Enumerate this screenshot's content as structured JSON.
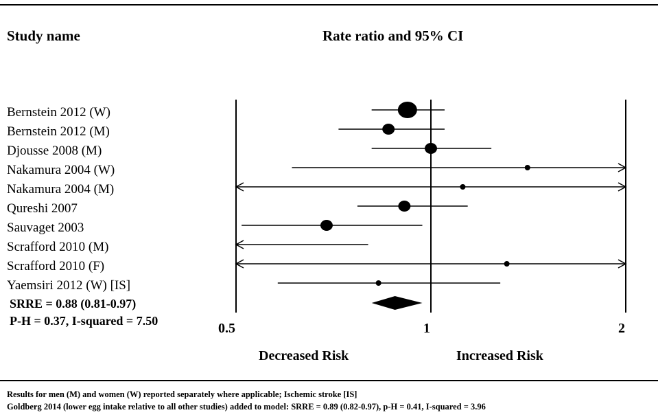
{
  "header": {
    "study_col": "Study name",
    "effect_col": "Rate ratio and 95% CI"
  },
  "chart_data": {
    "type": "forest",
    "x_scale": "log",
    "xlim": [
      0.5,
      2
    ],
    "xticks": [
      "0.5",
      "1",
      "2"
    ],
    "reference_line": 1,
    "direction_labels": {
      "left": "Decreased Risk",
      "right": "Increased Risk"
    },
    "studies": [
      {
        "name": "Bernstein 2012 (W)",
        "estimate": 0.92,
        "lower": 0.81,
        "upper": 1.05,
        "weight": "large"
      },
      {
        "name": "Bernstein 2012 (M)",
        "estimate": 0.86,
        "lower": 0.72,
        "upper": 1.05,
        "weight": "medium"
      },
      {
        "name": "Djousse 2008 (M)",
        "estimate": 1.0,
        "lower": 0.81,
        "upper": 1.24,
        "weight": "medium"
      },
      {
        "name": "Nakamura 2004 (W)",
        "estimate": 1.41,
        "lower": 0.61,
        "upper": 2,
        "arrow_right": true,
        "weight": "small"
      },
      {
        "name": "Nakamura 2004 (M)",
        "estimate": 1.12,
        "lower": 0.5,
        "upper": 2,
        "arrow_left": true,
        "arrow_right": true,
        "weight": "small"
      },
      {
        "name": "Qureshi 2007",
        "estimate": 0.91,
        "lower": 0.77,
        "upper": 1.14,
        "weight": "medium"
      },
      {
        "name": "Sauvaget 2003",
        "estimate": 0.69,
        "lower": 0.51,
        "upper": 0.97,
        "weight": "medium"
      },
      {
        "name": "Scrafford 2010 (M)",
        "estimate": null,
        "lower": 0.5,
        "upper": 0.8,
        "arrow_left": true,
        "weight": "none"
      },
      {
        "name": "Scrafford 2010 (F)",
        "estimate": 1.31,
        "lower": 0.5,
        "upper": 2,
        "arrow_left": true,
        "arrow_right": true,
        "weight": "small"
      },
      {
        "name": "Yaemsiri 2012 (W) [IS]",
        "estimate": 0.83,
        "lower": 0.58,
        "upper": 1.28,
        "weight": "small"
      }
    ],
    "summary": {
      "estimate": 0.88,
      "lower": 0.81,
      "upper": 0.97
    }
  },
  "summary_text": {
    "srre": "SRRE = 0.88 (0.81-0.97)",
    "heterogeneity": "P-H = 0.37, I-squared = 7.50"
  },
  "footnotes": [
    "Results for men (M) and women (W) reported separately where applicable; Ischemic stroke [IS]",
    "Goldberg 2014 (lower egg intake relative to all other studies) added to model: SRRE = 0.89 (0.82-0.97), p-H = 0.41, I-squared = 3.96"
  ]
}
